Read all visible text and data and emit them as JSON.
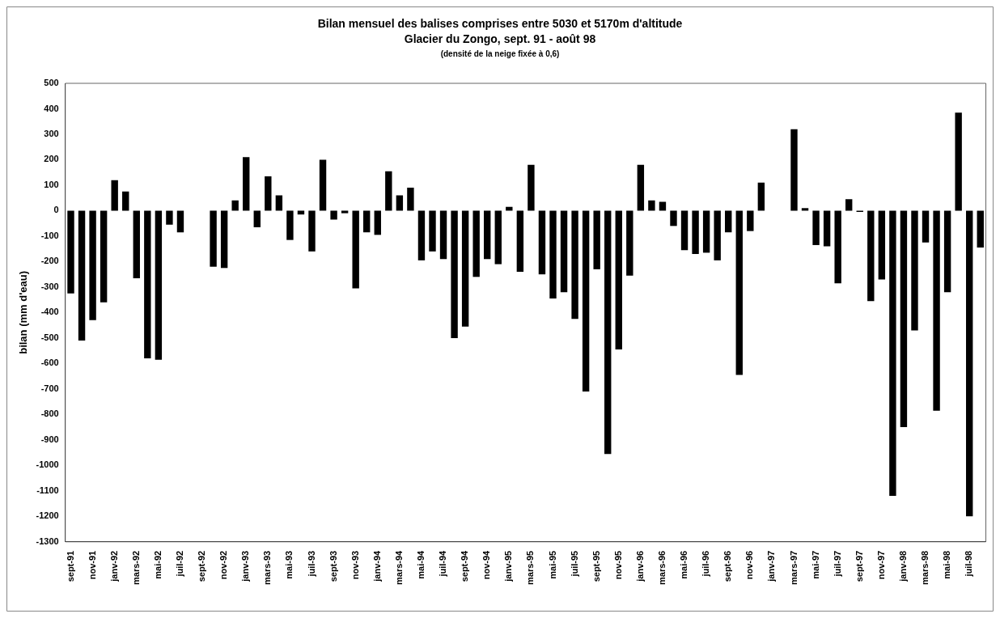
{
  "chart_data": {
    "type": "bar",
    "title": "Bilan mensuel des balises comprises entre 5030 et 5170m d'altitude",
    "subtitle": "Glacier du Zongo, sept. 91 - août 98",
    "annotations": [
      "(densité de la neige fixée à 0,6)"
    ],
    "ylabel": "bilan (mm d'eau)",
    "categories": [
      "sept-91",
      null,
      "nov-91",
      null,
      "janv-92",
      null,
      "mars-92",
      null,
      "mai-92",
      null,
      "juil-92",
      null,
      "sept-92",
      null,
      "nov-92",
      null,
      "janv-93",
      null,
      "mars-93",
      null,
      "mai-93",
      null,
      "juil-93",
      null,
      "sept-93",
      null,
      "nov-93",
      null,
      "janv-94",
      null,
      "mars-94",
      null,
      "mai-94",
      null,
      "juil-94",
      null,
      "sept-94",
      null,
      "nov-94",
      null,
      "janv-95",
      null,
      "mars-95",
      null,
      "mai-95",
      null,
      "juil-95",
      null,
      "sept-95",
      null,
      "nov-95",
      null,
      "janv-96",
      null,
      "mars-96",
      null,
      "mai-96",
      null,
      "juil-96",
      null,
      "sept-96",
      null,
      "nov-96",
      null,
      "janv-97",
      null,
      "mars-97",
      null,
      "mai-97",
      null,
      "juil-97",
      null,
      "sept-97",
      null,
      "nov-97",
      null,
      "janv-98",
      null,
      "mars-98",
      null,
      "mai-98",
      null,
      "juil-98",
      null
    ],
    "values": [
      -325,
      -510,
      -430,
      -360,
      120,
      75,
      -265,
      -580,
      -585,
      -55,
      -85,
      0,
      0,
      -220,
      -225,
      40,
      210,
      -65,
      135,
      60,
      -115,
      -15,
      -160,
      200,
      -35,
      -10,
      -305,
      -85,
      -95,
      155,
      60,
      90,
      -195,
      -160,
      -190,
      -500,
      -455,
      -260,
      -190,
      -210,
      15,
      -240,
      180,
      -250,
      -345,
      -320,
      -425,
      -710,
      -230,
      -955,
      -545,
      -255,
      180,
      40,
      35,
      -60,
      -155,
      -170,
      -165,
      -195,
      -85,
      -645,
      -80,
      110,
      0,
      0,
      320,
      10,
      -135,
      -140,
      -285,
      45,
      -5,
      -355,
      -270,
      -1120,
      -850,
      -470,
      -125,
      -785,
      -320,
      385,
      -1200,
      -145
    ],
    "color": "#000000",
    "ylim": [
      -1300,
      500
    ],
    "yticks": [
      -1300,
      -1200,
      -1100,
      -1000,
      -900,
      -800,
      -700,
      -600,
      -500,
      -400,
      -300,
      -200,
      -100,
      0,
      100,
      200,
      300,
      400,
      500
    ],
    "grid": false,
    "legend": false
  }
}
